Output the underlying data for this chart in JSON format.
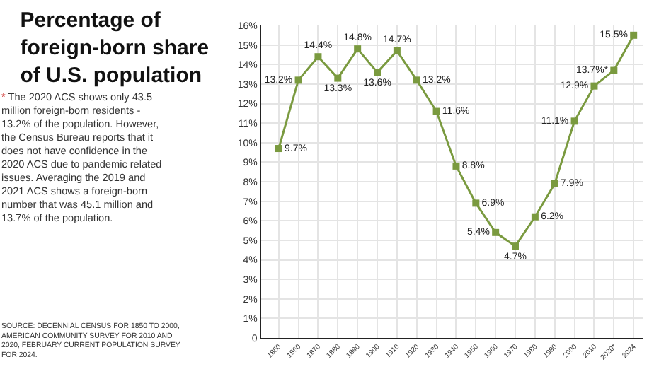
{
  "chart_data": {
    "type": "line",
    "title": "Percentage of\nforeign-born share\nof U.S. population",
    "annotations": [
      "* The 2020 ACS shows only 43.5\nmillion foreign-born residents -\n13.2% of the population. However,\nthe Census Bureau reports that it\ndoes not have confidence in the\n2020 ACS due to pandemic related\nissues. Averaging the 2019 and\n2021 ACS shows a foreign-born\nnumber that was 45.1 million and\n13.7% of the population.",
      "SOURCE: DECENNIAL CENSUS FOR 1850 TO 2000,\nAMERICAN COMMUNITY SURVEY FOR 2010 AND\n2020, FEBRUARY CURRENT POPULATION SURVEY\nFOR 2024."
    ],
    "categories": [
      "1850",
      "1860",
      "1870",
      "1880",
      "1890",
      "1900",
      "1910",
      "1920",
      "1930",
      "1940",
      "1950",
      "1960",
      "1970",
      "1980",
      "1990",
      "2000",
      "2010",
      "2020*",
      "2024"
    ],
    "series": [
      {
        "color": "#7a9a3f",
        "values": [
          9.7,
          13.2,
          14.4,
          13.3,
          14.8,
          13.6,
          14.7,
          13.2,
          11.6,
          8.8,
          6.9,
          5.4,
          4.7,
          6.2,
          7.9,
          11.1,
          12.9,
          13.7,
          15.5
        ],
        "value_labels": [
          "9.7%",
          "13.2%",
          "14.4%",
          "13.3%",
          "14.8%",
          "13.6%",
          "14.7%",
          "13.2%",
          "11.6%",
          "8.8%",
          "6.9%",
          "5.4%",
          "4.7%",
          "6.2%",
          "7.9%",
          "11.1%",
          "12.9%",
          "13.7%*",
          "15.5%"
        ]
      }
    ],
    "ylim": [
      0,
      16
    ],
    "yticks": [
      {
        "value": 0,
        "label": "0"
      },
      {
        "value": 1,
        "label": "1%"
      },
      {
        "value": 2,
        "label": "2%"
      },
      {
        "value": 3,
        "label": "3%"
      },
      {
        "value": 4,
        "label": "4%"
      },
      {
        "value": 5,
        "label": "5%"
      },
      {
        "value": 6,
        "label": "6%"
      },
      {
        "value": 7,
        "label": "7%"
      },
      {
        "value": 8,
        "label": "8%"
      },
      {
        "value": 9,
        "label": "9%"
      },
      {
        "value": 10,
        "label": "10%"
      },
      {
        "value": 11,
        "label": "11%"
      },
      {
        "value": 12,
        "label": "12%"
      },
      {
        "value": 13,
        "label": "13%"
      },
      {
        "value": 14,
        "label": "14%"
      },
      {
        "value": 15,
        "label": "15%"
      },
      {
        "value": 16,
        "label": "16%"
      }
    ],
    "grid": true,
    "marker": "square",
    "line_style": "solid",
    "legend": false
  }
}
